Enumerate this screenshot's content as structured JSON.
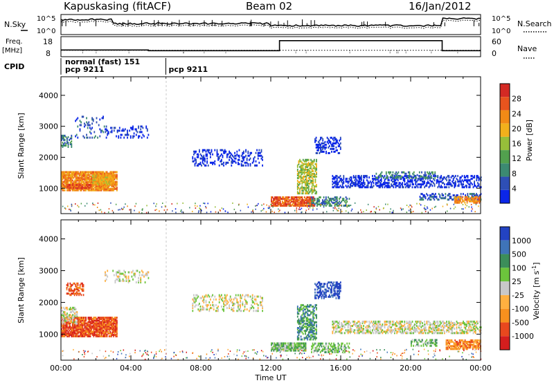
{
  "header": {
    "station": "Kapuskasing (fitACF)",
    "beam": "Beam 02",
    "date": "16/Jan/2012"
  },
  "noise_panel": {
    "left_label": "N.Sky",
    "right_label": "N.Search",
    "y_ticks": [
      "10^5",
      "10^0"
    ],
    "y_ticks_right": [
      "10^5",
      "10^0"
    ]
  },
  "freq_panel": {
    "left_label_1": "Freq.",
    "left_label_2": "[MHz]",
    "y_ticks_left": [
      "18",
      "8"
    ],
    "right_label": "Nave",
    "y_ticks_right": [
      "60",
      "0"
    ],
    "freq_mhz": 10,
    "nave_steps": [
      {
        "start_hour": 0,
        "end_hour": 5,
        "value": 20
      },
      {
        "start_hour": 5,
        "end_hour": 12.5,
        "value": 18
      },
      {
        "start_hour": 12.5,
        "end_hour": 21.8,
        "value": 48
      },
      {
        "start_hour": 21.8,
        "end_hour": 24,
        "value": 18
      }
    ]
  },
  "cpid_panel": {
    "label": "CPID",
    "mode_name": "normal (fast) 151",
    "segments": [
      {
        "label": "pcp 9211",
        "start_hour": 0
      },
      {
        "label": "pcp 9211",
        "start_hour": 6
      }
    ]
  },
  "chart_data": [
    {
      "type": "heatmap",
      "quantity": "Power",
      "xlabel": "",
      "ylabel": "Slant Range [km]",
      "xlim_hours": [
        0,
        24
      ],
      "ylim": [
        180,
        4600
      ],
      "y_ticks": [
        1000,
        2000,
        3000,
        4000
      ],
      "x_ticks": [
        "00:00",
        "04:00",
        "08:00",
        "12:00",
        "16:00",
        "20:00",
        "00:00"
      ],
      "colorbar": {
        "label": "Power [dB]",
        "ticks": [
          "4",
          "8",
          "12",
          "16",
          "20",
          "24",
          "28"
        ],
        "colors": [
          "#0b26e8",
          "#2e4fb5",
          "#3c8a72",
          "#52a04e",
          "#97be3a",
          "#f2b01c",
          "#f28a16",
          "#e8541e",
          "#d42a24"
        ]
      },
      "regions": [
        {
          "t0": 0.0,
          "t1": 3.2,
          "r0": 900,
          "r1": 1500,
          "c": 6,
          "p": 0.85
        },
        {
          "t0": 0.3,
          "t1": 1.7,
          "r0": 980,
          "r1": 1100,
          "c": 7,
          "p": 0.85
        },
        {
          "t0": 1.8,
          "t1": 3.0,
          "r0": 1100,
          "r1": 1400,
          "c": 5,
          "p": 0.9
        },
        {
          "t0": 0.0,
          "t1": 0.6,
          "r0": 2300,
          "r1": 2700,
          "c": 2,
          "p": 0.5
        },
        {
          "t0": 0.8,
          "t1": 2.5,
          "r0": 2600,
          "r1": 3300,
          "c": 1,
          "p": 0.15
        },
        {
          "t0": 2.5,
          "t1": 5.0,
          "r0": 2600,
          "r1": 3000,
          "c": 0,
          "p": 0.25
        },
        {
          "t0": 7.5,
          "t1": 11.5,
          "r0": 1700,
          "r1": 2200,
          "c": 0,
          "p": 0.25
        },
        {
          "t0": 12.0,
          "t1": 14.5,
          "r0": 400,
          "r1": 700,
          "c": 7,
          "p": 0.85
        },
        {
          "t0": 13.5,
          "t1": 14.6,
          "r0": 800,
          "r1": 1900,
          "c": 4,
          "p": 0.55
        },
        {
          "t0": 14.3,
          "t1": 16.5,
          "r0": 400,
          "r1": 700,
          "c": 2,
          "p": 0.45
        },
        {
          "t0": 15.5,
          "t1": 24.0,
          "r0": 1000,
          "r1": 1400,
          "c": 0,
          "p": 0.45
        },
        {
          "t0": 18.0,
          "t1": 21.5,
          "r0": 1300,
          "r1": 1500,
          "c": 2,
          "p": 0.35
        },
        {
          "t0": 14.5,
          "t1": 16.0,
          "r0": 2100,
          "r1": 2600,
          "c": 0,
          "p": 0.35
        },
        {
          "t0": 20.5,
          "t1": 24.0,
          "r0": 600,
          "r1": 800,
          "c": 1,
          "p": 0.45
        },
        {
          "t0": 22.5,
          "t1": 24.0,
          "r0": 500,
          "r1": 700,
          "c": 6,
          "p": 0.7
        }
      ]
    },
    {
      "type": "heatmap",
      "quantity": "Velocity",
      "xlabel": "Time UT",
      "ylabel": "Slant Range [km]",
      "xlim_hours": [
        0,
        24
      ],
      "ylim": [
        180,
        4600
      ],
      "y_ticks": [
        1000,
        2000,
        3000,
        4000
      ],
      "x_ticks": [
        "00:00",
        "04:00",
        "08:00",
        "12:00",
        "16:00",
        "20:00",
        "00:00"
      ],
      "colorbar": {
        "label": "Velocity [m s^-1]",
        "ticks": [
          "1000",
          "500",
          "100",
          "25",
          "-25",
          "-100",
          "-500",
          "-1000"
        ],
        "colors": [
          "#2343c2",
          "#3f74b8",
          "#3c8e5a",
          "#6cc43c",
          "#c8c8c8",
          "#ffb040",
          "#f7901e",
          "#e8481e",
          "#d41e1e"
        ]
      },
      "regions": [
        {
          "t0": 0.0,
          "t1": 3.2,
          "r0": 900,
          "r1": 1500,
          "c": 7,
          "p": 0.85
        },
        {
          "t0": 0.0,
          "t1": 0.9,
          "r0": 1300,
          "r1": 1800,
          "c": 4,
          "p": 0.5
        },
        {
          "t0": 0.3,
          "t1": 1.3,
          "r0": 2200,
          "r1": 2600,
          "c": 7,
          "p": 0.5
        },
        {
          "t0": 2.5,
          "t1": 5.0,
          "r0": 2600,
          "r1": 3000,
          "c": 4,
          "p": 0.25
        },
        {
          "t0": 7.5,
          "t1": 11.5,
          "r0": 1700,
          "r1": 2200,
          "c": 4,
          "p": 0.3
        },
        {
          "t0": 12.0,
          "t1": 14.0,
          "r0": 450,
          "r1": 700,
          "c": 3,
          "p": 0.85
        },
        {
          "t0": 13.5,
          "t1": 14.6,
          "r0": 800,
          "r1": 1900,
          "c": 2,
          "p": 0.5
        },
        {
          "t0": 14.3,
          "t1": 16.5,
          "r0": 400,
          "r1": 700,
          "c": 3,
          "p": 0.5
        },
        {
          "t0": 15.5,
          "t1": 24.0,
          "r0": 1000,
          "r1": 1400,
          "c": 4,
          "p": 0.5
        },
        {
          "t0": 14.5,
          "t1": 16.0,
          "r0": 2100,
          "r1": 2600,
          "c": 0,
          "p": 0.45
        },
        {
          "t0": 20.0,
          "t1": 21.5,
          "r0": 600,
          "r1": 800,
          "c": 3,
          "p": 0.5
        },
        {
          "t0": 22.0,
          "t1": 24.0,
          "r0": 500,
          "r1": 800,
          "c": 6,
          "p": 0.7
        }
      ]
    }
  ]
}
